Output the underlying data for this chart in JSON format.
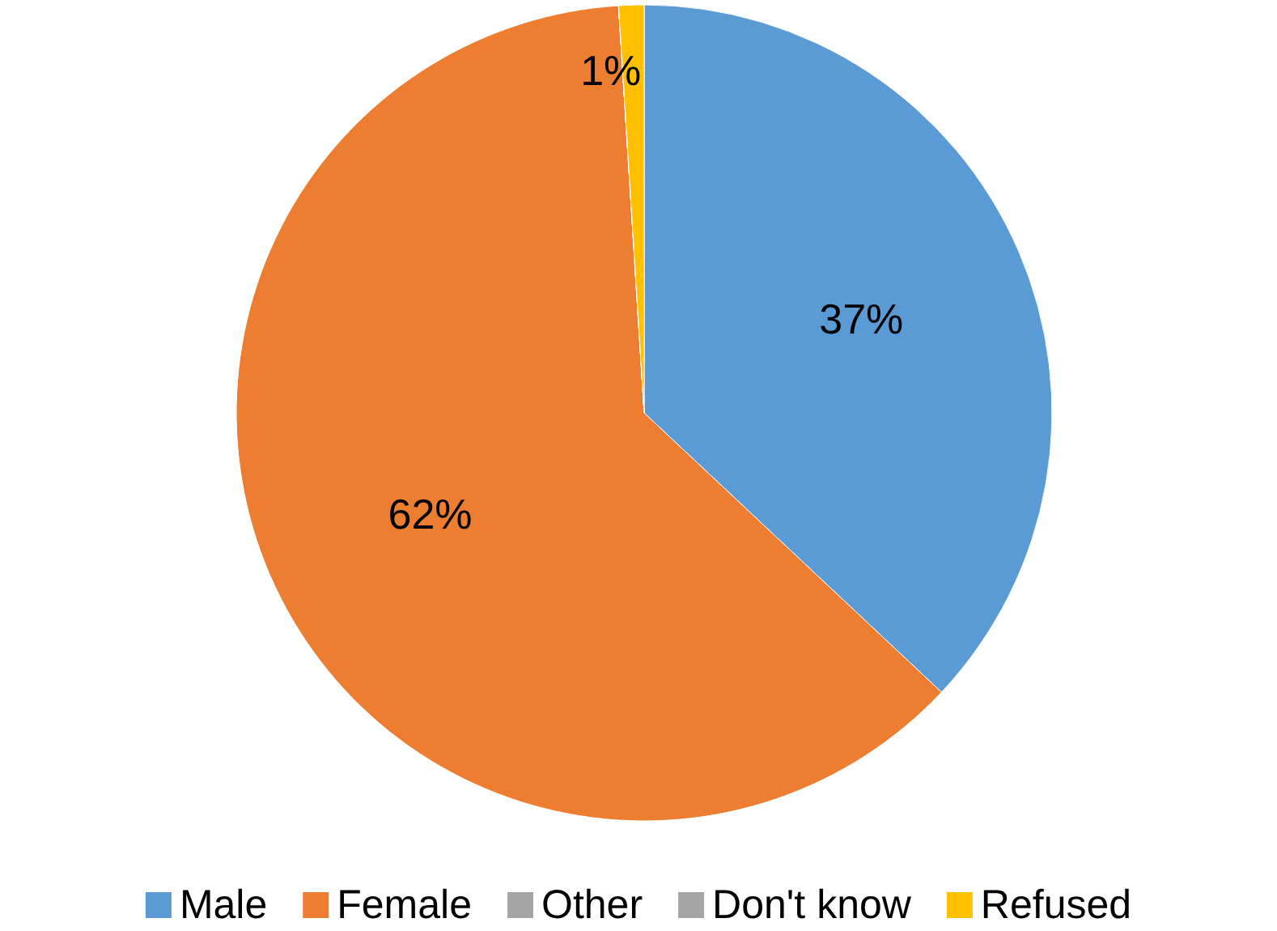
{
  "chart_data": {
    "type": "pie",
    "categories": [
      "Male",
      "Female",
      "Other",
      "Don't know",
      "Refused"
    ],
    "values": [
      37,
      62,
      0,
      0,
      1
    ],
    "colors": [
      "#5b9bd5",
      "#ed7d31",
      "#a5a5a5",
      "#a5a5a5",
      "#ffc000"
    ],
    "value_labels": [
      "37%",
      "62%",
      null,
      null,
      "1%"
    ],
    "legend": "bottom"
  }
}
